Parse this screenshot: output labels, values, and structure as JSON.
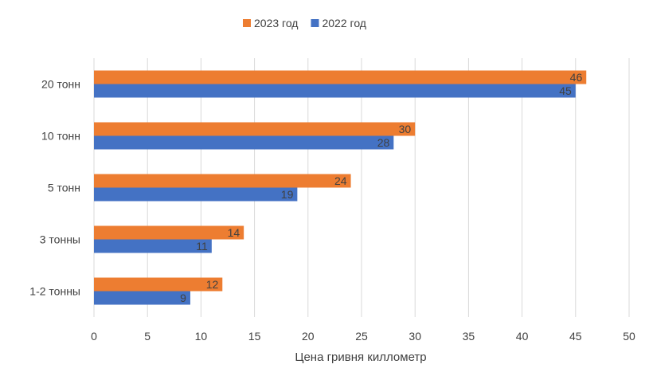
{
  "chart_data": {
    "type": "bar",
    "orientation": "horizontal",
    "categories": [
      "20 тонн",
      "10 тонн",
      "5 тонн",
      "3 тонны",
      "1-2 тонны"
    ],
    "series": [
      {
        "name": "2023 год",
        "color": "#ED7D31",
        "values": [
          46,
          30,
          24,
          14,
          12
        ]
      },
      {
        "name": "2022 год",
        "color": "#4472C4",
        "values": [
          45,
          28,
          19,
          11,
          9
        ]
      }
    ],
    "xlabel": "Цена гривня киллометр",
    "ylabel": "",
    "xlim": [
      0,
      50
    ],
    "xticks": [
      0,
      5,
      10,
      15,
      20,
      25,
      30,
      35,
      40,
      45,
      50
    ],
    "grid": true,
    "legend_position": "top-center",
    "data_labels": true
  }
}
